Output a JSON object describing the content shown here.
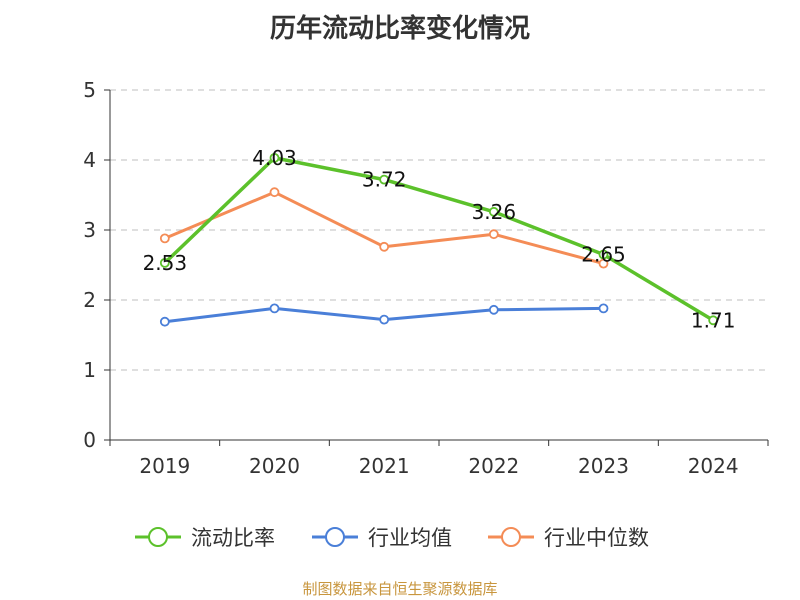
{
  "chart_data": {
    "type": "line",
    "title": "历年流动比率变化情况",
    "categories": [
      "2019",
      "2020",
      "2021",
      "2022",
      "2023",
      "2024"
    ],
    "ylim": [
      0,
      5
    ],
    "yticks": [
      "0",
      "1",
      "2",
      "3",
      "4",
      "5"
    ],
    "grid": true,
    "legend_position": "bottom-center",
    "series": [
      {
        "name": "流动比率",
        "color": "#5cc12b",
        "values": [
          2.53,
          4.03,
          3.72,
          3.26,
          2.65,
          1.71
        ],
        "labels": [
          "2.53",
          "4.03",
          "3.72",
          "3.26",
          "2.65",
          "1.71"
        ]
      },
      {
        "name": "行业均值",
        "color": "#4a7fd8",
        "values": [
          1.69,
          1.88,
          1.72,
          1.86,
          1.88,
          null
        ]
      },
      {
        "name": "行业中位数",
        "color": "#f48c56",
        "values": [
          2.88,
          3.54,
          2.76,
          2.94,
          2.52,
          null
        ]
      }
    ]
  },
  "source": "制图数据来自恒生聚源数据库"
}
